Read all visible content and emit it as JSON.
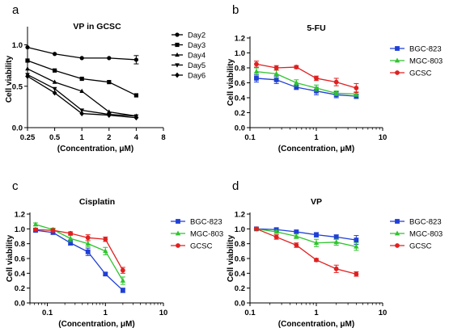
{
  "colors": {
    "BGC-823": "#1f3fd6",
    "MGC-803": "#2fc42f",
    "GCSC": "#e02020",
    "black": "#000000"
  },
  "chart_data": [
    {
      "panel": "a",
      "type": "line",
      "title": "VP in GCSC",
      "xlabel": "(Concentration, μM)",
      "ylabel": "Cell viability",
      "x_scale": "log2",
      "x_ticks": [
        0.25,
        0.5,
        1,
        2,
        4,
        8
      ],
      "x_tick_labels": [
        "0.25",
        "0.5",
        "1",
        "2",
        "4",
        "8"
      ],
      "xlim": [
        0.25,
        8
      ],
      "ylim": [
        0.0,
        1.2
      ],
      "y_ticks": [
        0.0,
        0.5,
        1.0
      ],
      "y_tick_labels": [
        "0.0",
        "0.5",
        "1.0"
      ],
      "legend_position": "right",
      "x": [
        0.25,
        0.5,
        1,
        2,
        4
      ],
      "series": [
        {
          "name": "Day2",
          "marker": "circle",
          "color": "#000000",
          "values": [
            0.97,
            0.89,
            0.84,
            0.84,
            0.82
          ],
          "errors": [
            0,
            0,
            0,
            0,
            0.05
          ]
        },
        {
          "name": "Day3",
          "marker": "square",
          "color": "#000000",
          "values": [
            0.81,
            0.69,
            0.59,
            0.55,
            0.39
          ],
          "errors": [
            0,
            0,
            0,
            0,
            0
          ]
        },
        {
          "name": "Day4",
          "marker": "triangle-up",
          "color": "#000000",
          "values": [
            0.71,
            0.55,
            0.44,
            0.19,
            0.14
          ],
          "errors": [
            0,
            0,
            0,
            0,
            0
          ]
        },
        {
          "name": "Day5",
          "marker": "triangle-down",
          "color": "#000000",
          "values": [
            0.64,
            0.47,
            0.21,
            0.16,
            0.14
          ],
          "errors": [
            0,
            0,
            0,
            0,
            0
          ]
        },
        {
          "name": "Day6",
          "marker": "diamond",
          "color": "#000000",
          "values": [
            0.62,
            0.42,
            0.17,
            0.15,
            0.12
          ],
          "errors": [
            0,
            0,
            0,
            0,
            0
          ]
        }
      ]
    },
    {
      "panel": "b",
      "type": "line",
      "title": "5-FU",
      "xlabel": "(Concentration, μM)",
      "ylabel": "Cell viability",
      "x_scale": "log10",
      "x_ticks": [
        0.1,
        1,
        10
      ],
      "x_tick_labels": [
        "0.1",
        "1",
        "10"
      ],
      "xlim": [
        0.1,
        10
      ],
      "ylim": [
        0.0,
        1.2
      ],
      "y_ticks": [
        0.0,
        0.2,
        0.4,
        0.6,
        0.8,
        1.0,
        1.2
      ],
      "y_tick_labels": [
        "0.0",
        "0.2",
        "0.4",
        "0.6",
        "0.8",
        "1.0",
        "1.2"
      ],
      "legend_position": "right",
      "x": [
        0.125,
        0.25,
        0.5,
        1,
        2,
        4
      ],
      "series": [
        {
          "name": "BGC-823",
          "marker": "square",
          "color": "#1f3fd6",
          "values": [
            0.66,
            0.64,
            0.54,
            0.49,
            0.44,
            0.42
          ],
          "errors": [
            0.05,
            0.05,
            0.03,
            0.05,
            0.04,
            0.03
          ]
        },
        {
          "name": "MGC-803",
          "marker": "triangle-up",
          "color": "#2fc42f",
          "values": [
            0.75,
            0.72,
            0.6,
            0.53,
            0.46,
            0.45
          ],
          "errors": [
            0.05,
            0.05,
            0.04,
            0.04,
            0.03,
            0.03
          ]
        },
        {
          "name": "GCSC",
          "marker": "circle",
          "color": "#e02020",
          "values": [
            0.85,
            0.8,
            0.81,
            0.66,
            0.61,
            0.53
          ],
          "errors": [
            0.04,
            0.03,
            0.02,
            0.03,
            0.05,
            0.06
          ]
        }
      ]
    },
    {
      "panel": "c",
      "type": "line",
      "title": "Cisplatin",
      "xlabel": "(Concentration, μM)",
      "ylabel": "Cell viability",
      "x_scale": "log10",
      "x_ticks": [
        0.1,
        1,
        10
      ],
      "x_tick_labels": [
        "0.1",
        "1",
        "10"
      ],
      "xlim": [
        0.05,
        10
      ],
      "ylim": [
        0.0,
        1.2
      ],
      "y_ticks": [
        0.0,
        0.2,
        0.4,
        0.6,
        0.8,
        1.0,
        1.2
      ],
      "y_tick_labels": [
        "0.0",
        "0.2",
        "0.4",
        "0.6",
        "0.8",
        "1.0",
        "1.2"
      ],
      "legend_position": "right",
      "x": [
        0.0625,
        0.125,
        0.25,
        0.5,
        1,
        2
      ],
      "series": [
        {
          "name": "BGC-823",
          "marker": "square",
          "color": "#1f3fd6",
          "values": [
            0.98,
            0.95,
            0.81,
            0.69,
            0.39,
            0.17
          ],
          "errors": [
            0.02,
            0.02,
            0.03,
            0.05,
            0.02,
            0.03
          ]
        },
        {
          "name": "MGC-803",
          "marker": "triangle-up",
          "color": "#2fc42f",
          "values": [
            1.06,
            0.99,
            0.87,
            0.8,
            0.7,
            0.3
          ],
          "errors": [
            0.02,
            0.02,
            0.04,
            0.04,
            0.05,
            0.05
          ]
        },
        {
          "name": "GCSC",
          "marker": "circle",
          "color": "#e02020",
          "values": [
            0.99,
            0.98,
            0.94,
            0.88,
            0.86,
            0.44
          ],
          "errors": [
            0.02,
            0.02,
            0.02,
            0.04,
            0.03,
            0.04
          ]
        }
      ]
    },
    {
      "panel": "d",
      "type": "line",
      "title": "VP",
      "xlabel": "(Concentration, μM)",
      "ylabel": "Cell viability",
      "x_scale": "log10",
      "x_ticks": [
        0.1,
        1,
        10
      ],
      "x_tick_labels": [
        "0.1",
        "1",
        "10"
      ],
      "xlim": [
        0.1,
        10
      ],
      "ylim": [
        0.0,
        1.2
      ],
      "y_ticks": [
        0.0,
        0.2,
        0.4,
        0.6,
        0.8,
        1.0,
        1.2
      ],
      "y_tick_labels": [
        "0.0",
        "0.2",
        "0.4",
        "0.6",
        "0.8",
        "1.0",
        "1.2"
      ],
      "legend_position": "right",
      "x": [
        0.125,
        0.25,
        0.5,
        1,
        2,
        4
      ],
      "series": [
        {
          "name": "BGC-823",
          "marker": "square",
          "color": "#1f3fd6",
          "values": [
            1.0,
            0.99,
            0.96,
            0.92,
            0.89,
            0.85
          ],
          "errors": [
            0.01,
            0.02,
            0.02,
            0.03,
            0.03,
            0.06
          ]
        },
        {
          "name": "MGC-803",
          "marker": "triangle-up",
          "color": "#2fc42f",
          "values": [
            1.0,
            0.96,
            0.9,
            0.81,
            0.82,
            0.76
          ],
          "errors": [
            0.01,
            0.02,
            0.03,
            0.05,
            0.04,
            0.05
          ]
        },
        {
          "name": "GCSC",
          "marker": "circle",
          "color": "#e02020",
          "values": [
            1.0,
            0.89,
            0.78,
            0.58,
            0.46,
            0.39
          ],
          "errors": [
            0.01,
            0.03,
            0.03,
            0.02,
            0.05,
            0.03
          ]
        }
      ]
    }
  ]
}
